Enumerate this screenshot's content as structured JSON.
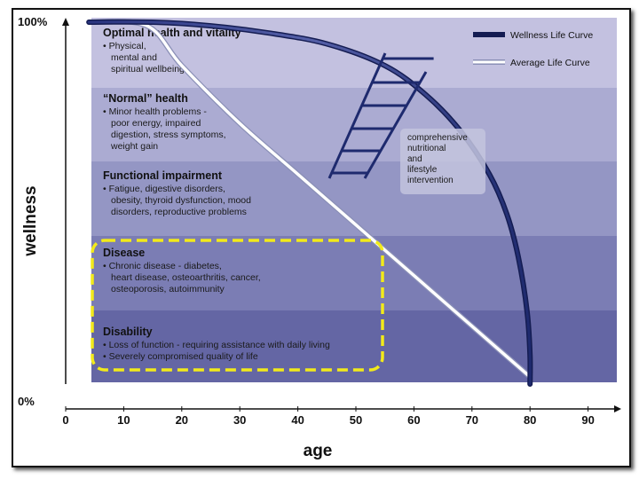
{
  "chart_data": {
    "type": "line",
    "xlabel": "age",
    "ylabel": "wellness",
    "xlim": [
      0,
      90
    ],
    "x_ticks": [
      "0",
      "10",
      "20",
      "30",
      "40",
      "50",
      "60",
      "70",
      "80",
      "90"
    ],
    "y_ticks": [
      "0%",
      "100%"
    ],
    "series": [
      {
        "name": "Wellness Life Curve",
        "color": "#1e2a6e",
        "points": [
          [
            4,
            100
          ],
          [
            15,
            100
          ],
          [
            25,
            99
          ],
          [
            35,
            97
          ],
          [
            45,
            94
          ],
          [
            55,
            88
          ],
          [
            62,
            80
          ],
          [
            68,
            70
          ],
          [
            73,
            58
          ],
          [
            76,
            47
          ],
          [
            78,
            35
          ],
          [
            79.5,
            20
          ],
          [
            80,
            8
          ],
          [
            80,
            0
          ]
        ]
      },
      {
        "name": "Average Life Curve",
        "color": "#ffffff",
        "points": [
          [
            4,
            100
          ],
          [
            14,
            99
          ],
          [
            20,
            88
          ],
          [
            30,
            72
          ],
          [
            40,
            58
          ],
          [
            50,
            44
          ],
          [
            60,
            30
          ],
          [
            70,
            16
          ],
          [
            80,
            2
          ]
        ]
      }
    ],
    "bands": [
      {
        "title": "Optimal health and vitality",
        "items": [
          "• Physical,",
          "mental and",
          "spiritual wellbeing"
        ],
        "color": "#c3c1e0"
      },
      {
        "title": "“Normal” health",
        "items": [
          "• Minor health problems -",
          "poor energy, impaired",
          "digestion, stress symptoms,",
          "weight gain"
        ],
        "color": "#ababd2"
      },
      {
        "title": "Functional impairment",
        "items": [
          "• Fatigue, digestive disorders,",
          "obesity, thyroid dysfunction, mood",
          "disorders, reproductive problems"
        ],
        "color": "#9496c4"
      },
      {
        "title": "Disease",
        "items": [
          "• Chronic disease - diabetes,",
          "heart disease, osteoarthritis, cancer,",
          "osteoporosis, autoimmunity"
        ],
        "color": "#7b7db4"
      },
      {
        "title": "Disability",
        "items": [
          "• Loss of function - requiring assistance with daily living",
          "• Severely compromised quality of life"
        ],
        "color": "#6466a4"
      }
    ],
    "ladder_rungs": 6,
    "callout": [
      "comprehensive",
      "nutritional",
      "and",
      "lifestyle",
      "intervention"
    ],
    "highlight": {
      "color": "#f2ea1a",
      "style": "dashed"
    },
    "legend_position": "top-right"
  }
}
